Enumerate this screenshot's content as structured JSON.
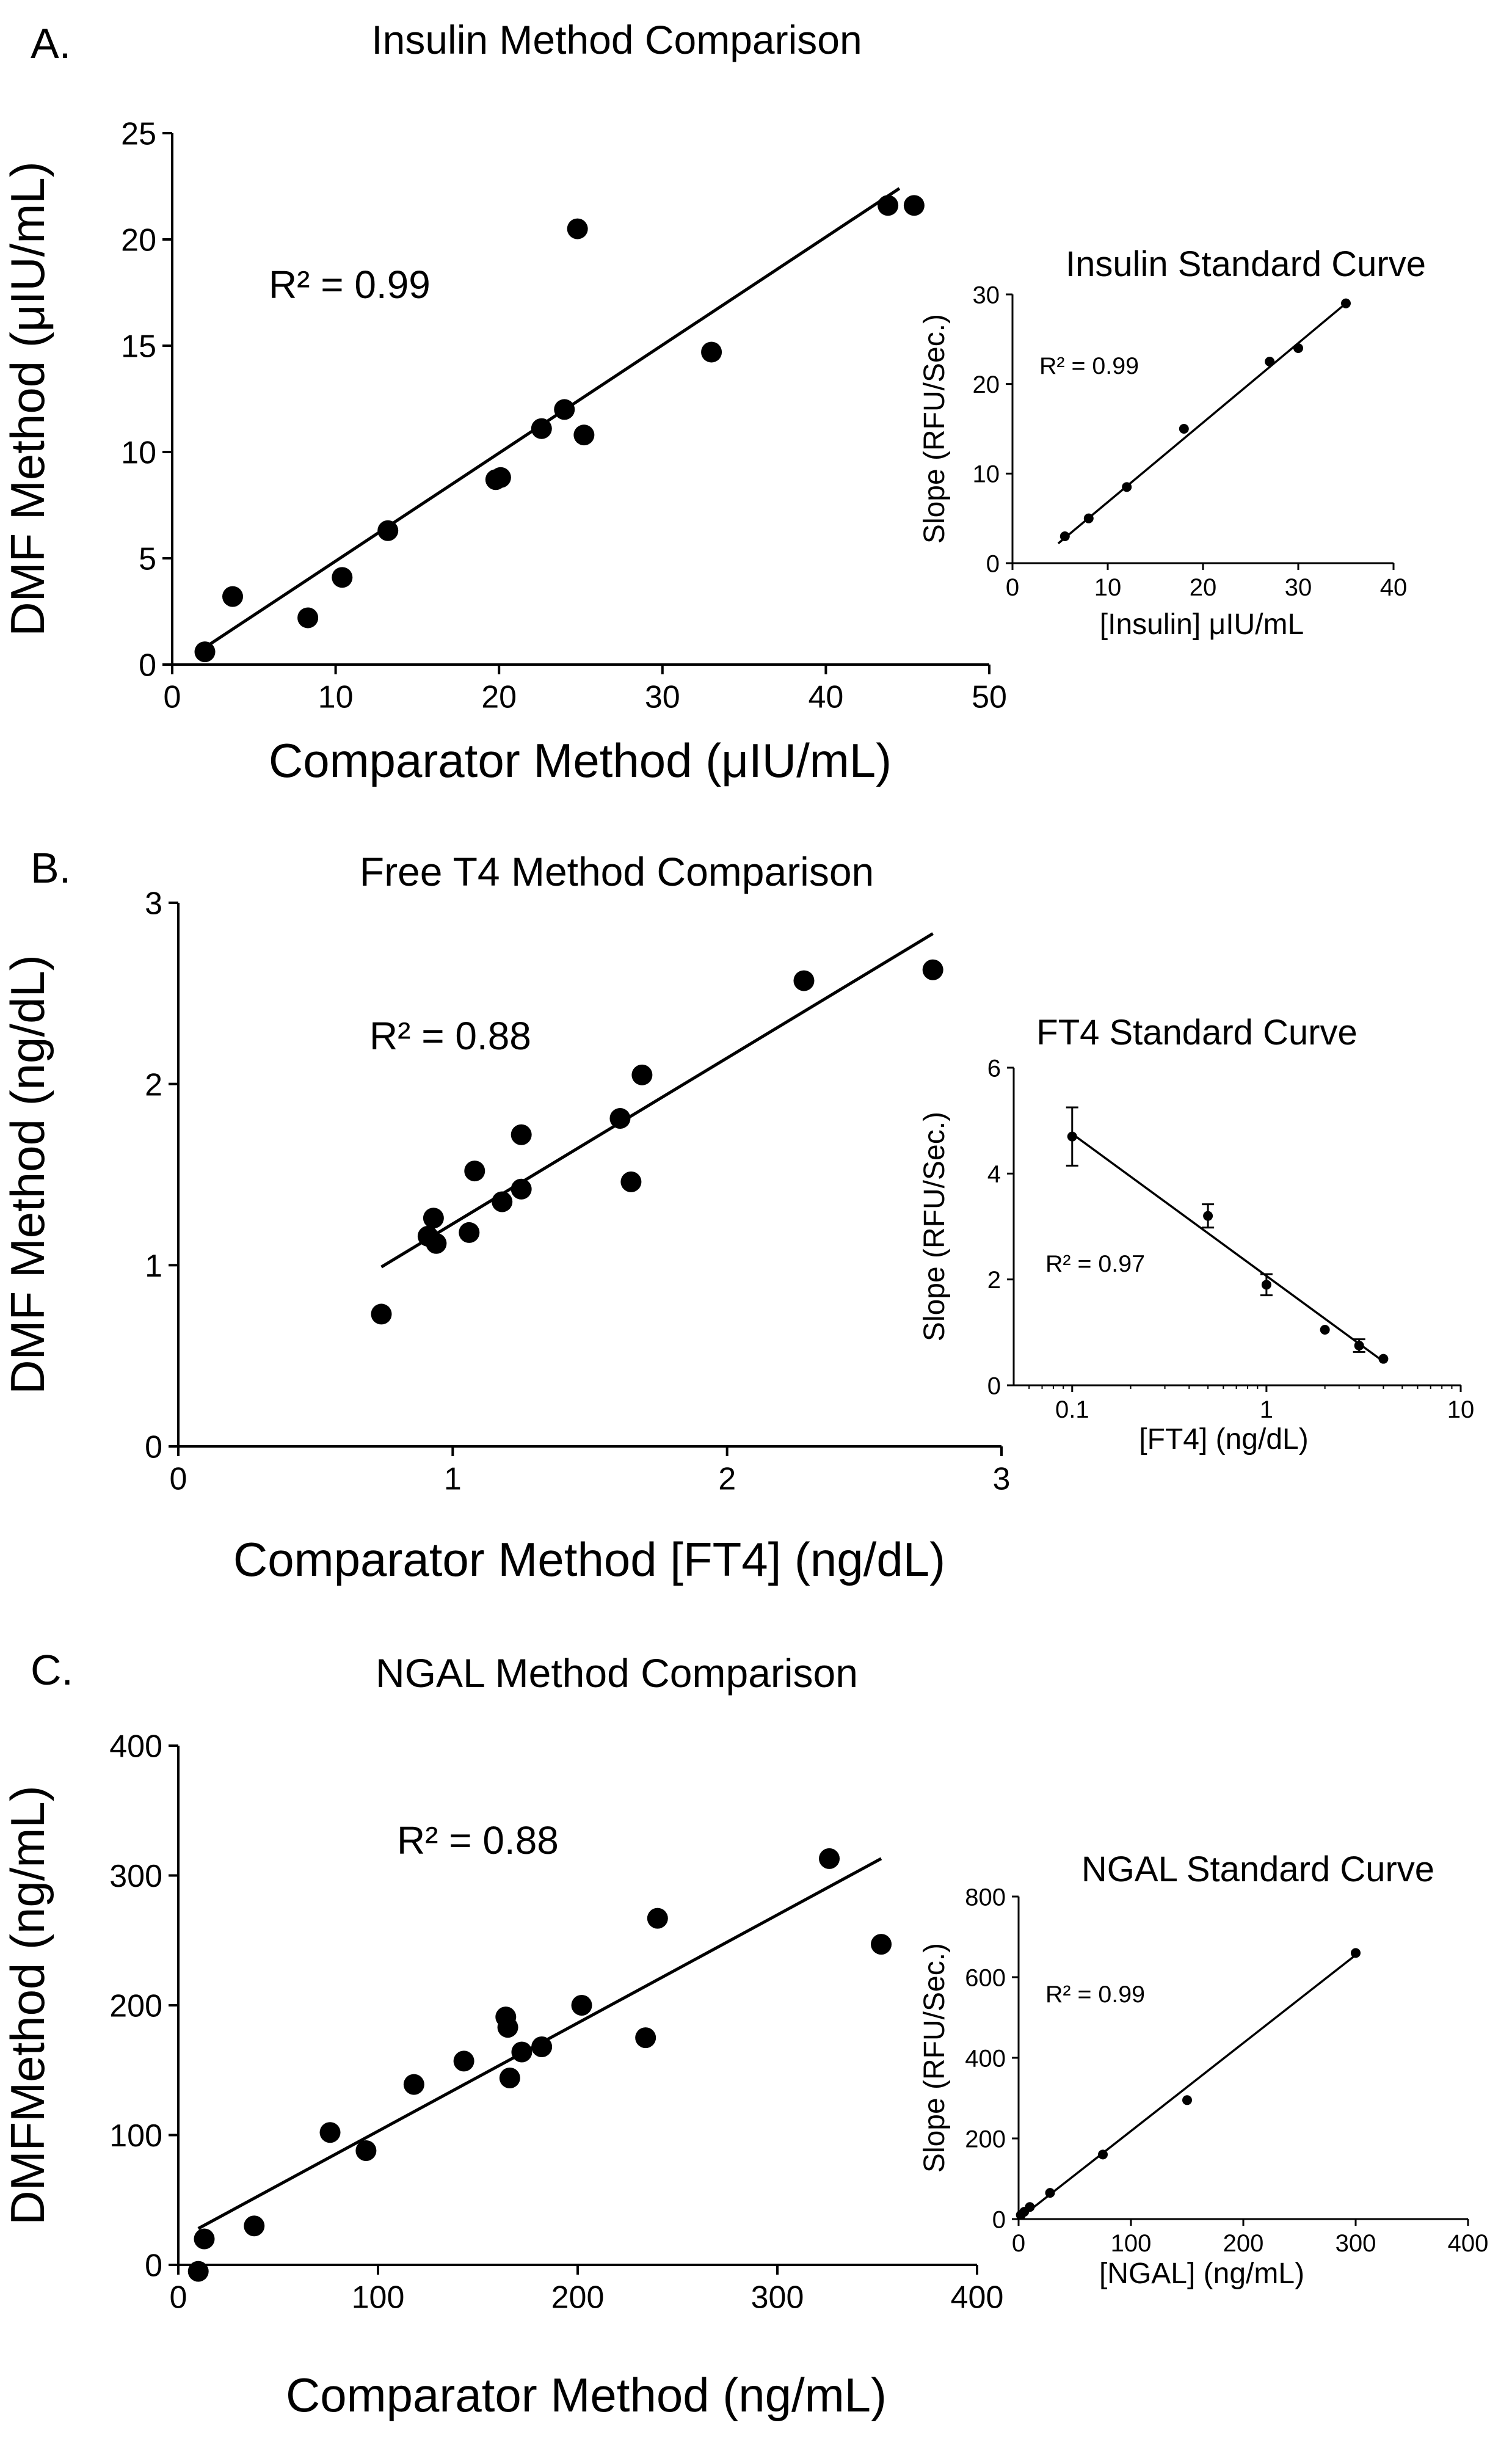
{
  "panels": [
    {
      "letter": "A.",
      "main": {
        "type": "scatter",
        "title": "Insulin Method Comparison",
        "xlabel": "Comparator Method (μIU/mL)",
        "ylabel": "DMF Method (μIU/mL)",
        "xlim": [
          0,
          50
        ],
        "ylim": [
          0,
          25
        ],
        "xticks": [
          0,
          10,
          20,
          30,
          40,
          50
        ],
        "yticks": [
          0,
          5,
          10,
          15,
          20,
          25
        ],
        "annotation": "R² = 0.99",
        "points": [
          [
            2.0,
            0.6
          ],
          [
            3.7,
            3.2
          ],
          [
            8.3,
            2.2
          ],
          [
            10.4,
            4.1
          ],
          [
            13.2,
            6.3
          ],
          [
            19.8,
            8.7
          ],
          [
            20.1,
            8.8
          ],
          [
            22.6,
            11.1
          ],
          [
            24.0,
            12.0
          ],
          [
            24.8,
            20.5
          ],
          [
            25.2,
            10.8
          ],
          [
            33.0,
            14.7
          ],
          [
            43.8,
            21.6
          ],
          [
            45.4,
            21.6
          ]
        ],
        "fit": [
          [
            1.8,
            0.7
          ],
          [
            44.5,
            22.4
          ]
        ]
      },
      "inset": {
        "type": "scatter",
        "title": "Insulin Standard Curve",
        "xlabel": "[Insulin] μIU/mL",
        "ylabel": "Slope (RFU/Sec.)",
        "xlim": [
          0,
          40
        ],
        "ylim": [
          0,
          30
        ],
        "xticks": [
          0,
          10,
          20,
          30,
          40
        ],
        "yticks": [
          0,
          10,
          20,
          30
        ],
        "annotation": "R² = 0.99",
        "points": [
          [
            5.5,
            3
          ],
          [
            8,
            5
          ],
          [
            12,
            8.5
          ],
          [
            18,
            15
          ],
          [
            27,
            22.5
          ],
          [
            30,
            24
          ],
          [
            35,
            29
          ]
        ],
        "fit": [
          [
            4.8,
            2.2
          ],
          [
            35,
            29
          ]
        ]
      }
    },
    {
      "letter": "B.",
      "main": {
        "type": "scatter",
        "title": "Free T4 Method Comparison",
        "xlabel": "Comparator Method [FT4] (ng/dL)",
        "ylabel": "DMF Method (ng/dL)",
        "xlim": [
          0,
          3
        ],
        "ylim": [
          0,
          3
        ],
        "xticks": [
          0,
          1,
          2,
          3
        ],
        "yticks": [
          0,
          1,
          2,
          3
        ],
        "annotation": "R² = 0.88",
        "points": [
          [
            0.74,
            0.73
          ],
          [
            0.91,
            1.16
          ],
          [
            0.93,
            1.26
          ],
          [
            0.94,
            1.12
          ],
          [
            1.06,
            1.18
          ],
          [
            1.08,
            1.52
          ],
          [
            1.18,
            1.35
          ],
          [
            1.25,
            1.72
          ],
          [
            1.25,
            1.42
          ],
          [
            1.61,
            1.81
          ],
          [
            1.65,
            1.46
          ],
          [
            1.69,
            2.05
          ],
          [
            2.28,
            2.57
          ],
          [
            2.75,
            2.63
          ]
        ],
        "fit": [
          [
            0.74,
            0.99
          ],
          [
            2.75,
            2.83
          ]
        ]
      },
      "inset": {
        "type": "scatter",
        "title": "FT4 Standard Curve",
        "xlabel": "[FT4] (ng/dL)",
        "ylabel": "Slope (RFU/Sec.)",
        "xscale": "log",
        "xlim": [
          0.05,
          10
        ],
        "ylim": [
          0,
          6
        ],
        "xticks": [
          0.1,
          1,
          10
        ],
        "xticklabels": [
          "0.1",
          "1",
          "10"
        ],
        "yticks": [
          0,
          2,
          4,
          6
        ],
        "annotation": "R² = 0.97",
        "points": [
          [
            0.1,
            4.7,
            0.55
          ],
          [
            0.5,
            3.2,
            0.22
          ],
          [
            1,
            1.9,
            0.2
          ],
          [
            2,
            1.05,
            0
          ],
          [
            3,
            0.75,
            0.12
          ],
          [
            4,
            0.5,
            0
          ]
        ],
        "fit": [
          [
            0.1,
            4.75
          ],
          [
            4,
            0.45
          ]
        ]
      }
    },
    {
      "letter": "C.",
      "main": {
        "type": "scatter",
        "title": "NGAL Method Comparison",
        "xlabel": "Comparator Method (ng/mL)",
        "ylabel": "DMFMethod (ng/mL)",
        "xlim": [
          0,
          400
        ],
        "ylim": [
          0,
          400
        ],
        "xticks": [
          0,
          100,
          200,
          300,
          400
        ],
        "yticks": [
          0,
          100,
          200,
          300,
          400
        ],
        "annotation": "R² = 0.88",
        "points": [
          [
            10,
            -5
          ],
          [
            13,
            20
          ],
          [
            38,
            30
          ],
          [
            76,
            102
          ],
          [
            94,
            88
          ],
          [
            118,
            139
          ],
          [
            143,
            157
          ],
          [
            164,
            191
          ],
          [
            165,
            183
          ],
          [
            166,
            144
          ],
          [
            172,
            164
          ],
          [
            182,
            168
          ],
          [
            202,
            200
          ],
          [
            234,
            175
          ],
          [
            240,
            267
          ],
          [
            326,
            313
          ],
          [
            352,
            247
          ]
        ],
        "fit": [
          [
            10,
            28
          ],
          [
            352,
            313
          ]
        ]
      },
      "inset": {
        "type": "scatter",
        "title": "NGAL Standard Curve",
        "xlabel": "[NGAL] (ng/mL)",
        "ylabel": "Slope (RFU/Sec.)",
        "xlim": [
          0,
          400
        ],
        "ylim": [
          0,
          800
        ],
        "xticks": [
          0,
          100,
          200,
          300,
          400
        ],
        "yticks": [
          0,
          200,
          400,
          600,
          800
        ],
        "annotation": "R² = 0.99",
        "points": [
          [
            2,
            10
          ],
          [
            5,
            18
          ],
          [
            10,
            30
          ],
          [
            28,
            65
          ],
          [
            75,
            160
          ],
          [
            150,
            295
          ],
          [
            300,
            660
          ]
        ],
        "fit": [
          [
            0,
            0
          ],
          [
            300,
            655
          ]
        ]
      }
    }
  ]
}
